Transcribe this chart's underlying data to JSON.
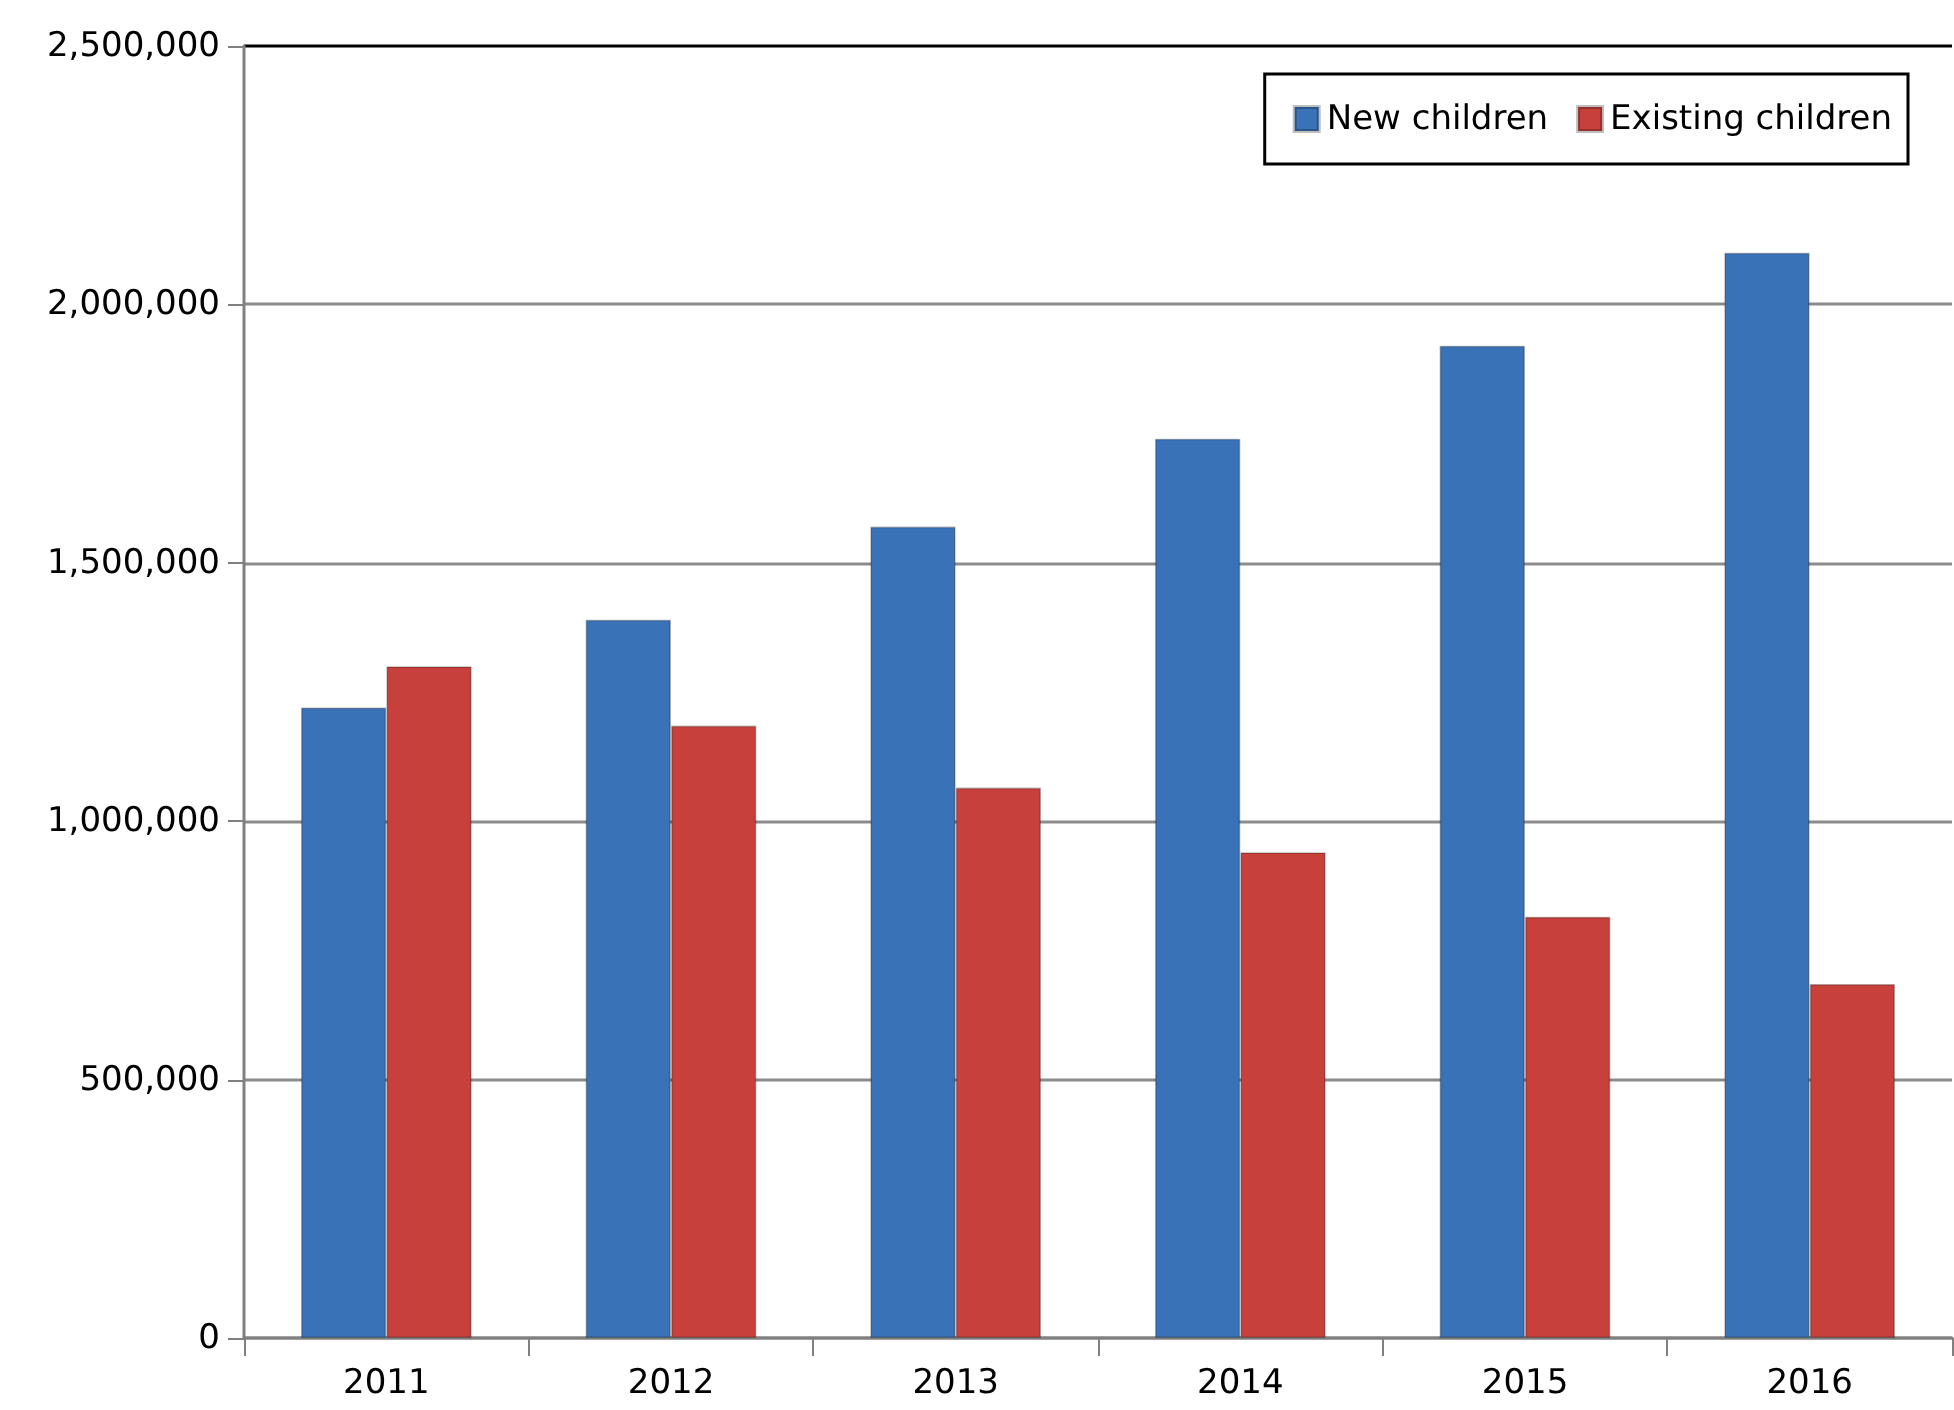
{
  "chart_data": {
    "type": "bar",
    "categories": [
      "2011",
      "2012",
      "2013",
      "2014",
      "2015",
      "2016"
    ],
    "series": [
      {
        "name": "New children",
        "color": "#3a72b8",
        "values": [
          1220000,
          1390000,
          1570000,
          1740000,
          1920000,
          2100000
        ]
      },
      {
        "name": "Existing children",
        "color": "#c8403c",
        "values": [
          1300000,
          1185000,
          1065000,
          940000,
          815000,
          685000
        ]
      }
    ],
    "ylim": [
      0,
      2500000
    ],
    "yticks": [
      {
        "value": 0,
        "label": "0"
      },
      {
        "value": 500000,
        "label": "500,000"
      },
      {
        "value": 1000000,
        "label": "1,000,000"
      },
      {
        "value": 1500000,
        "label": "1,500,000"
      },
      {
        "value": 2000000,
        "label": "2,000,000"
      },
      {
        "value": 2500000,
        "label": "2,500,000"
      }
    ],
    "grid": "y",
    "legend": "top right"
  }
}
